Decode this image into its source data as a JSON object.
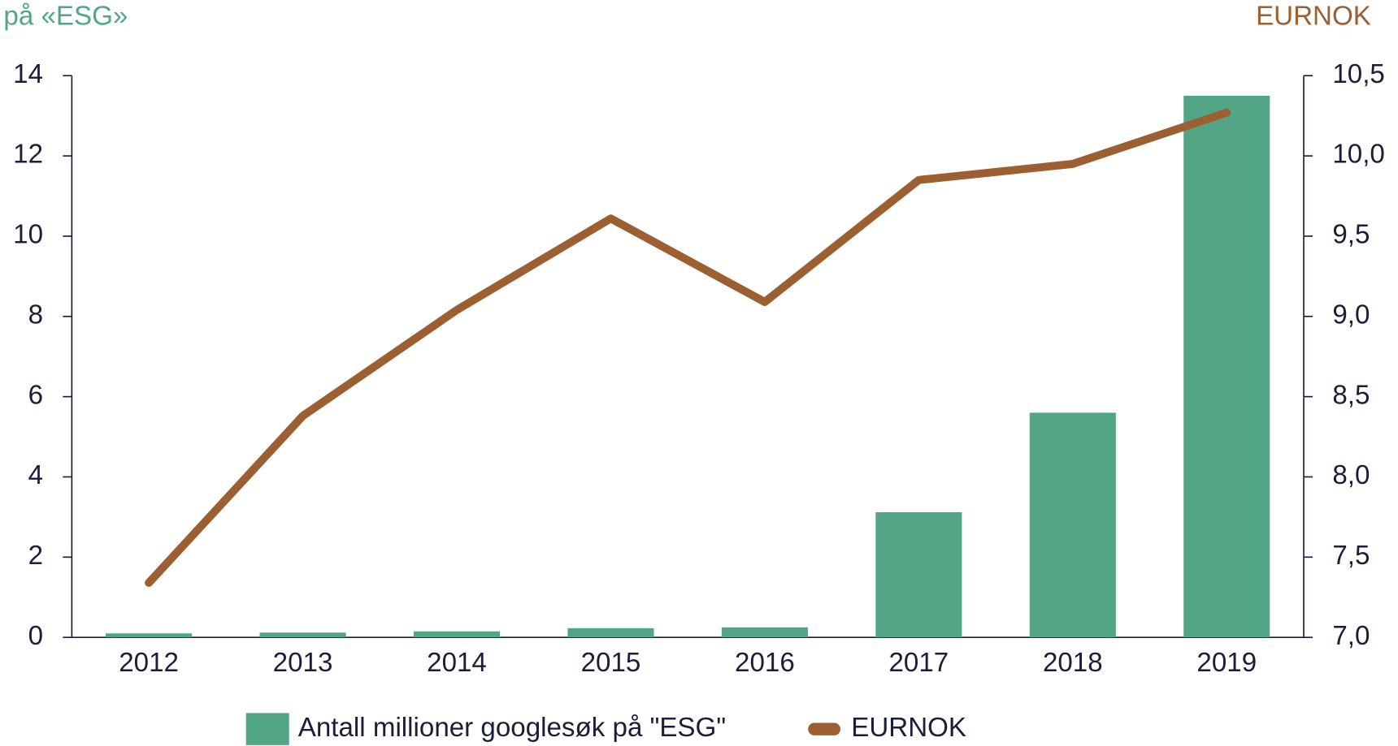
{
  "chart_data": {
    "type": "bar_line",
    "y_label": "på «ESG»",
    "y2_label": "EURNOK",
    "categories": [
      "2012",
      "2013",
      "2014",
      "2015",
      "2016",
      "2017",
      "2018",
      "2019"
    ],
    "series": [
      {
        "name": "Antall millioner googlesøk på \"ESG\"",
        "color": "#52a685",
        "type": "bar",
        "values": [
          0.1,
          0.12,
          0.15,
          0.23,
          0.25,
          3.12,
          5.6,
          13.5
        ]
      },
      {
        "name": "EURNOK",
        "color": "#9c5f31",
        "type": "line",
        "axis": "y2",
        "values": [
          7.34,
          8.38,
          9.04,
          9.61,
          9.09,
          9.85,
          9.95,
          10.27
        ]
      }
    ],
    "ylim": [
      0,
      14
    ],
    "yticks": [
      0,
      2,
      4,
      6,
      8,
      10,
      12,
      14
    ],
    "y2lim": [
      7.0,
      10.5
    ],
    "y2ticks": [
      {
        "value": 7.0,
        "label": "7,0"
      },
      {
        "value": 7.5,
        "label": "7,5"
      },
      {
        "value": 8.0,
        "label": "8,0"
      },
      {
        "value": 8.5,
        "label": "8,5"
      },
      {
        "value": 9.0,
        "label": "9,0"
      },
      {
        "value": 9.5,
        "label": "9,5"
      },
      {
        "value": 10.0,
        "label": "10,0"
      },
      {
        "value": 10.5,
        "label": "10,5"
      }
    ],
    "y_label_color": "#52a685",
    "y2_label_color": "#9c5f31",
    "axis_color": "#1b1e3a"
  }
}
